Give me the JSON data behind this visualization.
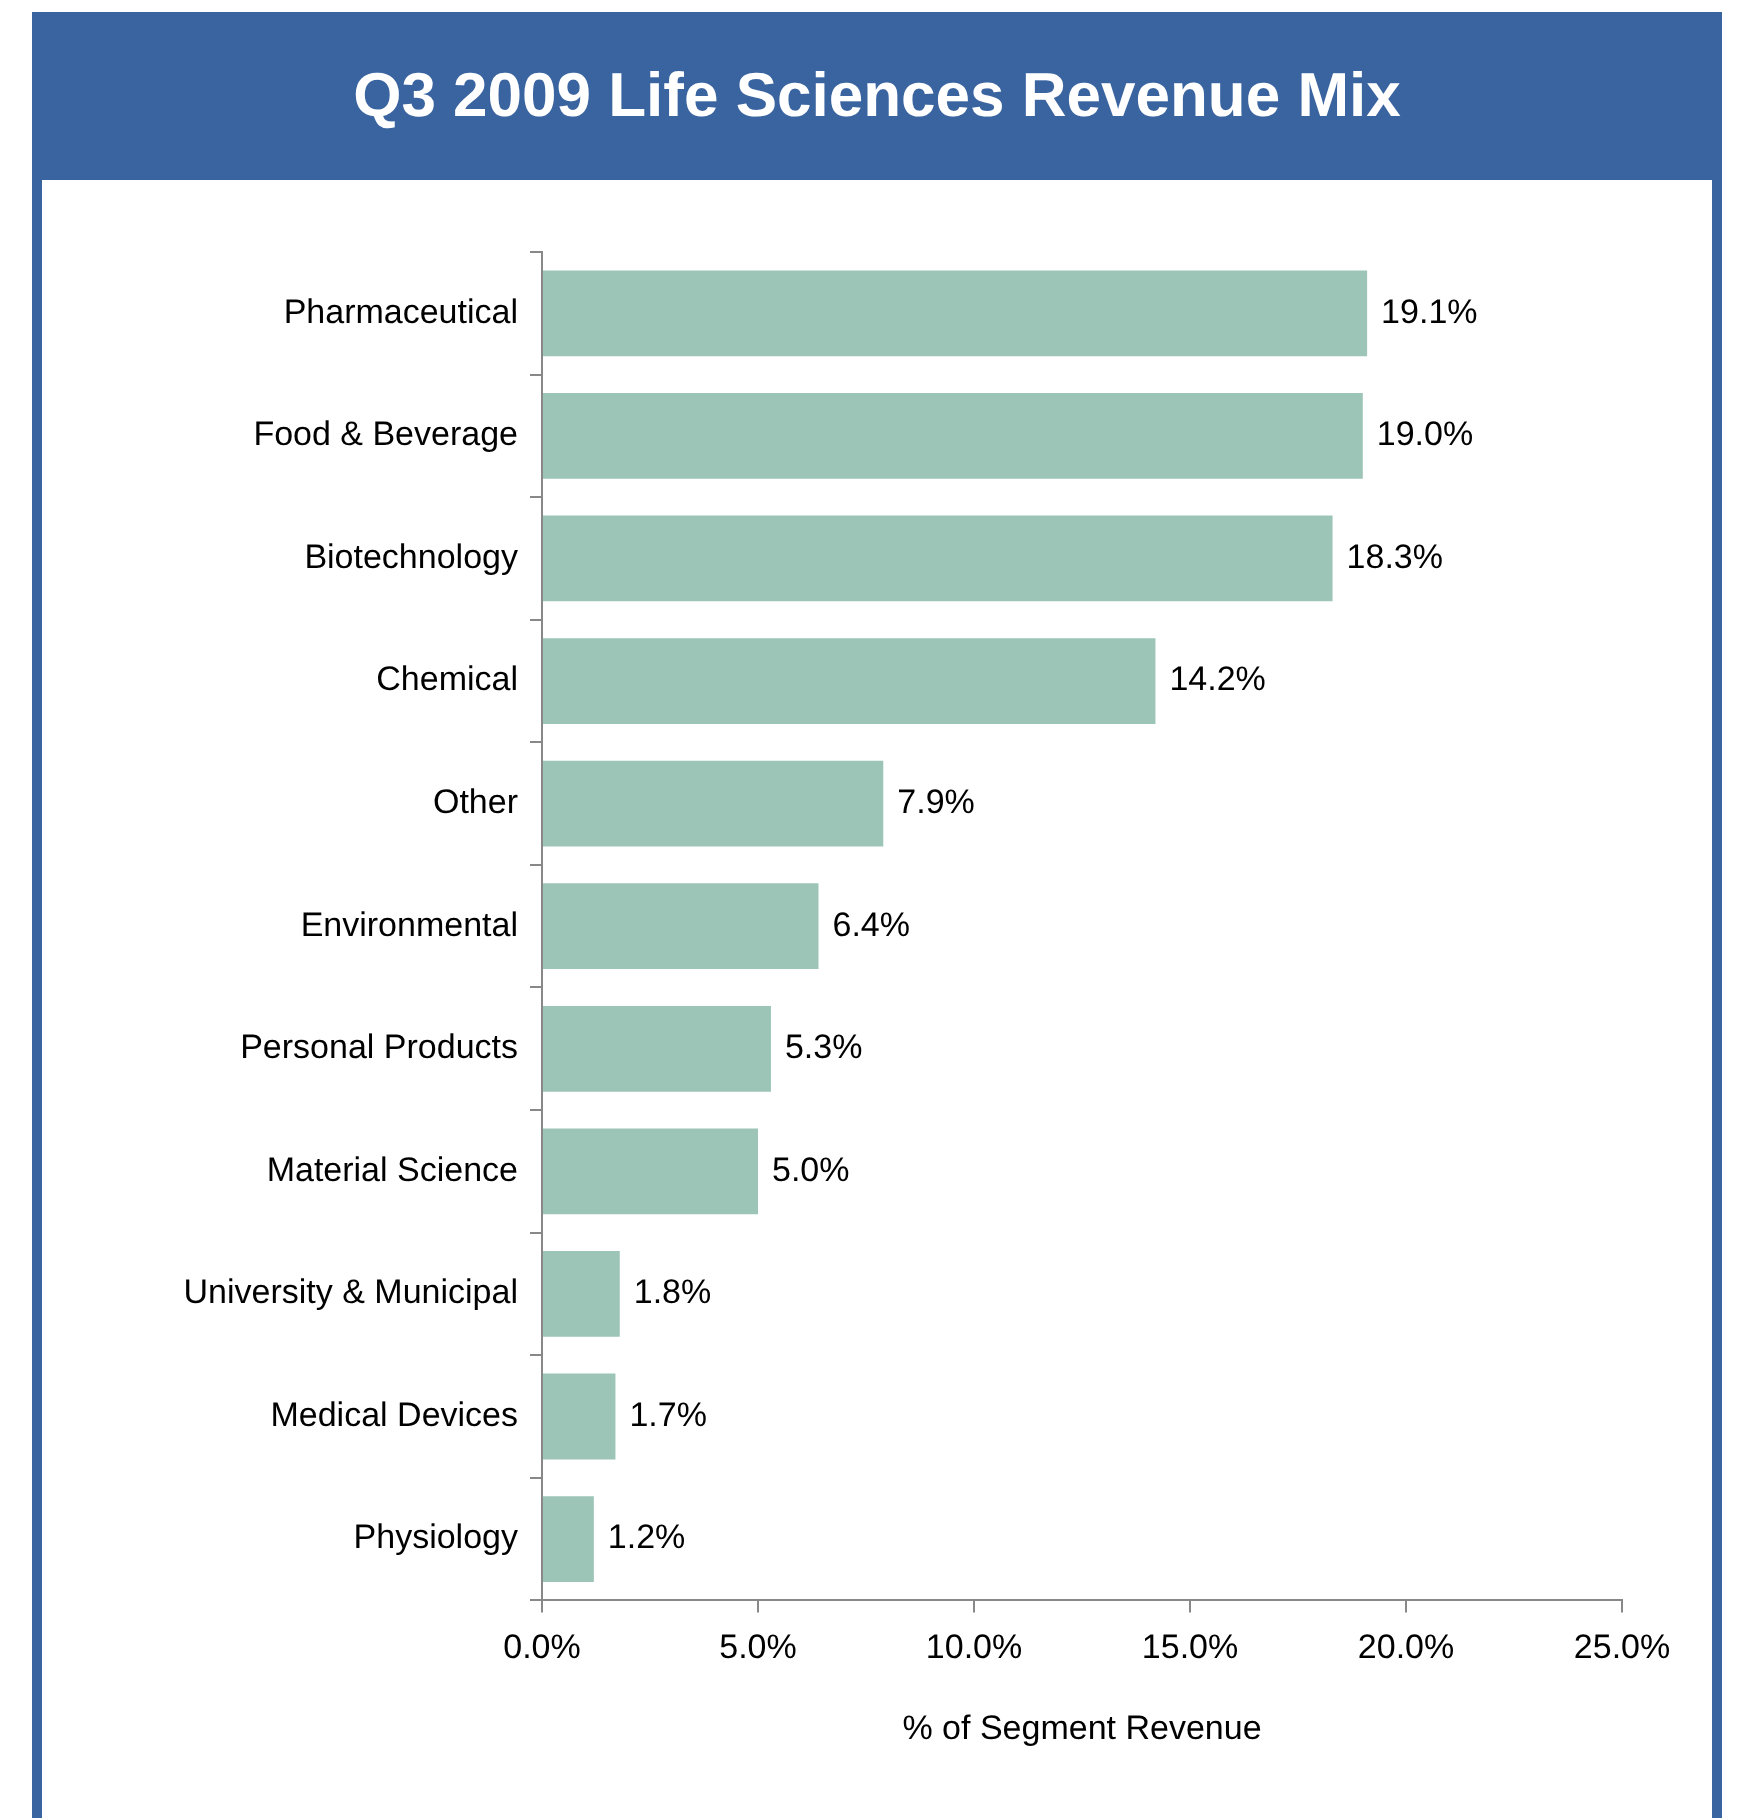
{
  "chart_data": {
    "type": "bar",
    "orientation": "horizontal",
    "title": "Q3 2009 Life Sciences Revenue Mix",
    "xlabel": "% of Segment Revenue",
    "categories": [
      "Pharmaceutical",
      "Food & Beverage",
      "Biotechnology",
      "Chemical",
      "Other",
      "Environmental",
      "Personal Products",
      "Material Science",
      "University & Municipal",
      "Medical Devices",
      "Physiology"
    ],
    "values": [
      19.1,
      19.0,
      18.3,
      14.2,
      7.9,
      6.4,
      5.3,
      5.0,
      1.8,
      1.7,
      1.2
    ],
    "value_labels": [
      "19.1%",
      "19.0%",
      "18.3%",
      "14.2%",
      "7.9%",
      "6.4%",
      "5.3%",
      "5.0%",
      "1.8%",
      "1.7%",
      "1.2%"
    ],
    "color": "#9cc5b8",
    "xlim": [
      0,
      25
    ],
    "xticks": [
      {
        "value": 0,
        "label": "0.0%"
      },
      {
        "value": 5,
        "label": "5.0%"
      },
      {
        "value": 10,
        "label": "10.0%"
      },
      {
        "value": 15,
        "label": "15.0%"
      },
      {
        "value": 20,
        "label": "20.0%"
      },
      {
        "value": 25,
        "label": "25.0%"
      }
    ],
    "grid": false,
    "legend": false
  }
}
